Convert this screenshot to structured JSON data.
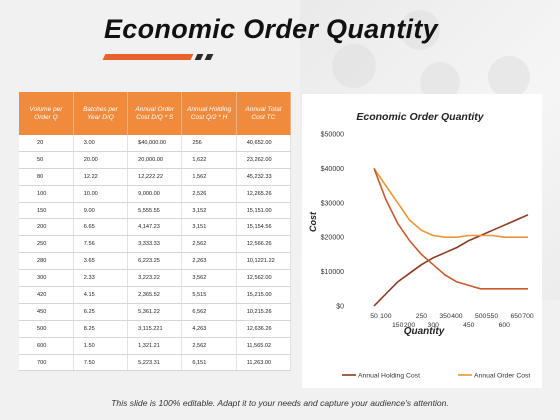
{
  "title": "Economic Order Quantity",
  "accent": {
    "orange": "#e8622c",
    "dark": "#2b2b2b",
    "header": "#f08a3c"
  },
  "table": {
    "headers": [
      "Volume per Order Q",
      "Batches per Year D/Q",
      "Annual Order Cost D/Q * S",
      "Annual Holding Cost Q/2 * H",
      "Annual Total Cost TC"
    ],
    "rows": [
      [
        "20",
        "3.00",
        "$40,000.00",
        "256",
        "40,652.00"
      ],
      [
        "50",
        "20.00",
        "20,000.00",
        "1,622",
        "23,262.00"
      ],
      [
        "80",
        "12.22",
        "12,222.22",
        "1,562",
        "45,232.33"
      ],
      [
        "100",
        "10.00",
        "9,000.00",
        "2,526",
        "12,265.26"
      ],
      [
        "150",
        "9.00",
        "5,555.55",
        "3,152",
        "15,151.00"
      ],
      [
        "200",
        "6.65",
        "4,147.23",
        "3,151",
        "15,154.56"
      ],
      [
        "250",
        "7.56",
        "3,333.33",
        "2,562",
        "12,566.26"
      ],
      [
        "280",
        "3.65",
        "6,223.25",
        "2,263",
        "10,1221.22"
      ],
      [
        "300",
        "2.33",
        "3,223.22",
        "3,562",
        "12,562.00"
      ],
      [
        "420",
        "4.15",
        "2,365.52",
        "5,515",
        "15,215.00"
      ],
      [
        "450",
        "6.25",
        "5,361.22",
        "6,562",
        "10,215.26"
      ],
      [
        "500",
        "8.25",
        "3,115.221",
        "4,263",
        "12,636.26"
      ],
      [
        "600",
        "1.50",
        "1,321.21",
        "2,562",
        "11,565.02"
      ],
      [
        "700",
        "7.50",
        "5,223.31",
        "6,151",
        "11,263.00"
      ]
    ]
  },
  "chart_data": {
    "type": "line",
    "title": "Economic  Order Quantity",
    "xlabel": "Quantity",
    "ylabel": "Cost",
    "x": [
      50,
      100,
      150,
      200,
      250,
      300,
      350,
      400,
      450,
      500,
      550,
      600,
      650,
      700
    ],
    "x_tick_labels_upper": [
      "50",
      "100",
      "",
      "",
      "250",
      "",
      "350",
      "400",
      "",
      "500",
      "550",
      "",
      "650",
      "700"
    ],
    "x_tick_labels_lower": [
      "",
      "",
      "150",
      "200",
      "",
      "300",
      "",
      "",
      "450",
      "",
      "",
      "600",
      "",
      ""
    ],
    "ylim": [
      0,
      50000
    ],
    "y_ticks": [
      0,
      10000,
      20000,
      30000,
      40000,
      50000
    ],
    "y_tick_labels": [
      "$0",
      "$10000",
      "$20000",
      "$30000",
      "$40000",
      "$50000"
    ],
    "grid": false,
    "legend_position": "bottom",
    "series": [
      {
        "name": "Annual Holding Cost",
        "color": "#8b3a1f",
        "values": [
          0,
          3500,
          7000,
          9500,
          12000,
          14000,
          15500,
          17000,
          19000,
          20500,
          22000,
          23500,
          25000,
          26500
        ]
      },
      {
        "name": "Annual Order Cost",
        "color": "#e99636",
        "values": [
          40000,
          35000,
          30000,
          25000,
          22000,
          20500,
          20000,
          20000,
          20500,
          20500,
          20500,
          20000,
          20000,
          20000
        ]
      },
      {
        "name": "",
        "color": "#c95a2e",
        "values": [
          40000,
          31000,
          24000,
          19000,
          15000,
          12000,
          9000,
          7000,
          6000,
          5000,
          5000,
          5000,
          5000,
          5000
        ]
      }
    ]
  },
  "footer": "This slide is 100% editable. Adapt it to your needs and capture your audience's attention."
}
